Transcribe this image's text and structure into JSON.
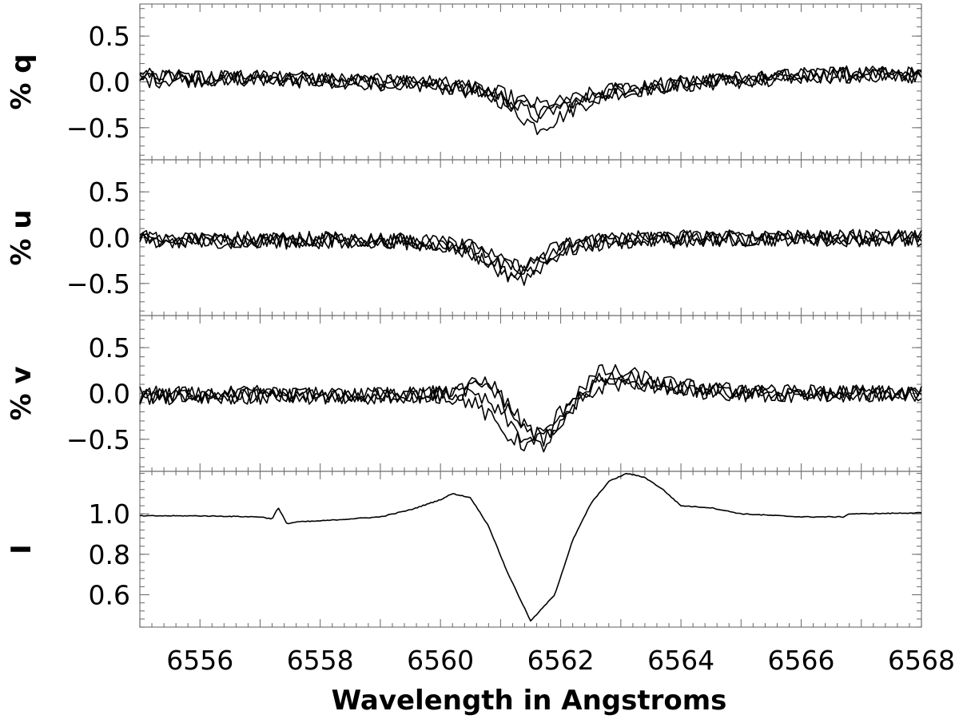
{
  "chart_data": {
    "type": "line",
    "xlabel": "Wavelength in Angstroms",
    "xlim": [
      6555,
      6568
    ],
    "xticks": [
      6556,
      6558,
      6560,
      6562,
      6564,
      6566,
      6568
    ],
    "xtick_labels": [
      "6556",
      "6558",
      "6560",
      "6562",
      "6564",
      "6566",
      "6568"
    ],
    "panels": [
      {
        "id": "q",
        "ylabel": "% q",
        "ylim": [
          -0.85,
          0.85
        ],
        "yticks": [
          -0.5,
          0.0,
          0.5
        ],
        "ytick_labels": [
          "−0.5",
          "0.0",
          "0.5"
        ],
        "series": [
          {
            "x": [
              6555,
              6556,
              6557,
              6558,
              6559,
              6560,
              6560.5,
              6561,
              6561.3,
              6561.6,
              6561.9,
              6562.2,
              6562.5,
              6563,
              6564,
              6565,
              6566,
              6567,
              6568
            ],
            "values": [
              0.06,
              0.05,
              0.04,
              0.02,
              0.0,
              -0.03,
              -0.06,
              -0.15,
              -0.25,
              -0.32,
              -0.28,
              -0.22,
              -0.16,
              -0.08,
              -0.02,
              0.02,
              0.05,
              0.08,
              0.09
            ]
          },
          {
            "x": [
              6555,
              6556,
              6557,
              6558,
              6559,
              6560,
              6560.5,
              6561,
              6561.3,
              6561.6,
              6561.9,
              6562.2,
              6562.5,
              6563,
              6564,
              6565,
              6566,
              6567,
              6568
            ],
            "values": [
              0.04,
              0.06,
              0.03,
              0.01,
              -0.01,
              -0.05,
              -0.1,
              -0.2,
              -0.35,
              -0.5,
              -0.42,
              -0.3,
              -0.2,
              -0.1,
              -0.03,
              0.02,
              0.06,
              0.1,
              0.07
            ]
          },
          {
            "x": [
              6555,
              6556,
              6557,
              6558,
              6559,
              6560,
              6560.5,
              6561,
              6561.3,
              6561.6,
              6561.9,
              6562.2,
              6562.5,
              6563,
              6564,
              6565,
              6566,
              6567,
              6568
            ],
            "values": [
              0.02,
              0.03,
              0.05,
              0.03,
              0.0,
              -0.04,
              -0.08,
              -0.13,
              -0.2,
              -0.25,
              -0.24,
              -0.2,
              -0.14,
              -0.07,
              -0.01,
              0.03,
              0.07,
              0.08,
              0.1
            ]
          },
          {
            "x": [
              6555,
              6556,
              6557,
              6558,
              6559,
              6560,
              6560.5,
              6561,
              6561.3,
              6561.6,
              6561.9,
              6562.2,
              6562.5,
              6563,
              6564,
              6565,
              6566,
              6567,
              6568
            ],
            "values": [
              0.08,
              0.04,
              0.06,
              0.04,
              0.01,
              -0.02,
              -0.07,
              -0.18,
              -0.28,
              -0.38,
              -0.3,
              -0.24,
              -0.18,
              -0.09,
              -0.02,
              0.01,
              0.06,
              0.09,
              0.06
            ]
          }
        ]
      },
      {
        "id": "u",
        "ylabel": "% u",
        "ylim": [
          -0.85,
          0.85
        ],
        "yticks": [
          -0.5,
          0.0,
          0.5
        ],
        "ytick_labels": [
          "−0.5",
          "0.0",
          "0.5"
        ],
        "series": [
          {
            "x": [
              6555,
              6556,
              6557,
              6558,
              6559,
              6560,
              6560.5,
              6560.8,
              6561.1,
              6561.4,
              6561.7,
              6562,
              6562.5,
              6563,
              6564,
              6565,
              6566,
              6567,
              6568
            ],
            "values": [
              -0.03,
              -0.02,
              -0.01,
              -0.03,
              -0.04,
              -0.06,
              -0.15,
              -0.25,
              -0.32,
              -0.35,
              -0.22,
              -0.12,
              -0.06,
              -0.03,
              -0.01,
              -0.01,
              0.0,
              0.0,
              0.0
            ]
          },
          {
            "x": [
              6555,
              6556,
              6557,
              6558,
              6559,
              6560,
              6560.5,
              6560.8,
              6561.1,
              6561.4,
              6561.7,
              6562,
              6562.5,
              6563,
              6564,
              6565,
              6566,
              6567,
              6568
            ],
            "values": [
              0.0,
              -0.03,
              -0.02,
              -0.01,
              -0.03,
              -0.05,
              -0.12,
              -0.22,
              -0.38,
              -0.45,
              -0.3,
              -0.16,
              -0.08,
              -0.04,
              -0.02,
              0.0,
              -0.01,
              0.01,
              -0.01
            ]
          },
          {
            "x": [
              6555,
              6556,
              6557,
              6558,
              6559,
              6560,
              6560.5,
              6560.8,
              6561.1,
              6561.4,
              6561.7,
              6562,
              6562.5,
              6563,
              6564,
              6565,
              6566,
              6567,
              6568
            ],
            "values": [
              -0.05,
              -0.02,
              -0.04,
              -0.03,
              -0.02,
              -0.07,
              -0.17,
              -0.28,
              -0.4,
              -0.38,
              -0.25,
              -0.1,
              -0.05,
              -0.02,
              0.0,
              -0.02,
              0.0,
              -0.01,
              0.0
            ]
          },
          {
            "x": [
              6555,
              6556,
              6557,
              6558,
              6559,
              6560,
              6560.5,
              6560.8,
              6561.1,
              6561.4,
              6561.7,
              6562,
              6562.5,
              6563,
              6564,
              6565,
              6566,
              6567,
              6568
            ],
            "values": [
              -0.02,
              -0.04,
              -0.03,
              -0.02,
              -0.04,
              -0.05,
              -0.1,
              -0.18,
              -0.3,
              -0.32,
              -0.2,
              -0.08,
              -0.03,
              -0.01,
              -0.01,
              0.0,
              0.01,
              0.0,
              -0.01
            ]
          }
        ]
      },
      {
        "id": "v",
        "ylabel": "% v",
        "ylim": [
          -0.85,
          0.85
        ],
        "yticks": [
          -0.5,
          0.0,
          0.5
        ],
        "ytick_labels": [
          "−0.5",
          "0.0",
          "0.5"
        ],
        "series": [
          {
            "x": [
              6555,
              6556,
              6557,
              6558,
              6559,
              6560,
              6560.5,
              6560.8,
              6561.1,
              6561.4,
              6561.7,
              6562,
              6562.3,
              6562.7,
              6563.2,
              6564,
              6565,
              6566,
              6567,
              6568
            ],
            "values": [
              -0.02,
              -0.01,
              -0.02,
              -0.03,
              -0.01,
              0.02,
              0.08,
              0.15,
              -0.1,
              -0.35,
              -0.5,
              -0.3,
              0.0,
              0.2,
              0.15,
              0.05,
              0.01,
              0.0,
              0.0,
              -0.01
            ]
          },
          {
            "x": [
              6555,
              6556,
              6557,
              6558,
              6559,
              6560,
              6560.5,
              6560.8,
              6561.1,
              6561.4,
              6561.7,
              6562,
              6562.3,
              6562.7,
              6563.2,
              6564,
              6565,
              6566,
              6567,
              6568
            ],
            "values": [
              -0.05,
              -0.04,
              -0.03,
              -0.04,
              -0.03,
              -0.02,
              -0.08,
              -0.25,
              -0.45,
              -0.55,
              -0.58,
              -0.4,
              -0.1,
              0.08,
              0.12,
              0.06,
              0.01,
              -0.01,
              0.0,
              -0.02
            ]
          },
          {
            "x": [
              6555,
              6556,
              6557,
              6558,
              6559,
              6560,
              6560.5,
              6560.8,
              6561.1,
              6561.4,
              6561.7,
              6562,
              6562.3,
              6562.7,
              6563.2,
              6564,
              6565,
              6566,
              6567,
              6568
            ],
            "values": [
              0.0,
              -0.02,
              0.0,
              -0.02,
              -0.02,
              0.0,
              0.05,
              0.1,
              -0.15,
              -0.4,
              -0.45,
              -0.2,
              0.05,
              0.25,
              0.2,
              0.08,
              0.02,
              0.01,
              0.01,
              0.0
            ]
          },
          {
            "x": [
              6555,
              6556,
              6557,
              6558,
              6559,
              6560,
              6560.5,
              6560.8,
              6561.1,
              6561.4,
              6561.7,
              6562,
              6562.3,
              6562.7,
              6563.2,
              6564,
              6565,
              6566,
              6567,
              6568
            ],
            "values": [
              -0.03,
              -0.03,
              -0.02,
              -0.03,
              -0.02,
              -0.01,
              -0.02,
              -0.1,
              -0.3,
              -0.5,
              -0.52,
              -0.35,
              -0.05,
              0.15,
              0.1,
              0.04,
              0.0,
              -0.01,
              0.0,
              -0.01
            ]
          }
        ]
      },
      {
        "id": "I",
        "ylabel": "I",
        "ylim": [
          0.44,
          1.21
        ],
        "yticks": [
          0.6,
          0.8,
          1.0
        ],
        "ytick_labels": [
          "0.6",
          "0.8",
          "1.0"
        ],
        "series": [
          {
            "x": [
              6555,
              6556,
              6557,
              6557.2,
              6557.3,
              6557.45,
              6557.6,
              6558,
              6559,
              6559.5,
              6560,
              6560.2,
              6560.5,
              6560.8,
              6561.1,
              6561.5,
              6561.9,
              6562.2,
              6562.5,
              6562.8,
              6563.1,
              6563.4,
              6563.7,
              6564,
              6564.5,
              6565,
              6566,
              6566.7,
              6566.8,
              6567,
              6568
            ],
            "values": [
              0.99,
              0.99,
              0.985,
              0.975,
              1.03,
              0.95,
              0.96,
              0.965,
              0.985,
              1.02,
              1.07,
              1.1,
              1.08,
              0.94,
              0.72,
              0.47,
              0.6,
              0.87,
              1.05,
              1.16,
              1.2,
              1.18,
              1.12,
              1.04,
              1.03,
              1.0,
              0.985,
              0.985,
              1.0,
              1.0,
              1.005
            ]
          }
        ]
      }
    ],
    "grid": false,
    "legend": "none"
  }
}
